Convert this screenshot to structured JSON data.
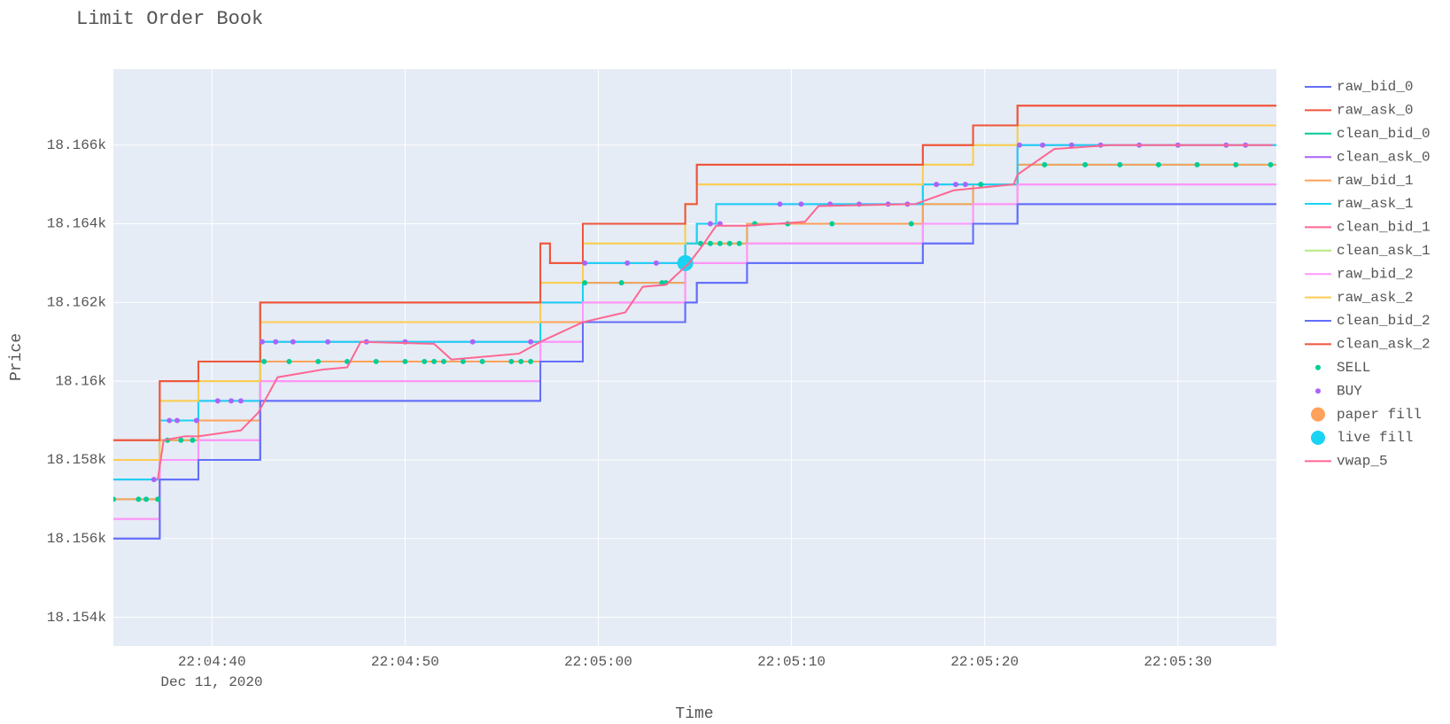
{
  "chart_data": {
    "type": "line",
    "title": "Limit Order Book",
    "x_label": "Time",
    "y_label": "Price",
    "x_date_label": "Dec 11, 2020",
    "xlim": [
      "22:04:34.9",
      "22:05:35.1"
    ],
    "xticks": [
      "22:04:40",
      "22:04:50",
      "22:05:00",
      "22:05:10",
      "22:05:20",
      "22:05:30"
    ],
    "ylim": [
      18153.27,
      18167.93
    ],
    "yticks": [
      {
        "value": 18154,
        "label": "18.154k"
      },
      {
        "value": 18156,
        "label": "18.156k"
      },
      {
        "value": 18158,
        "label": "18.158k"
      },
      {
        "value": 18160,
        "label": "18.16k"
      },
      {
        "value": 18162,
        "label": "18.162k"
      },
      {
        "value": 18164,
        "label": "18.164k"
      },
      {
        "value": 18166,
        "label": "18.166k"
      }
    ],
    "grid": true,
    "legend": "right",
    "x": [
      "22:04:34.9",
      "22:04:37.3",
      "22:04:39.3",
      "22:04:42.5",
      "22:04:57.0",
      "22:04:57.5",
      "22:04:59.2",
      "22:05:04.5",
      "22:05:05.1",
      "22:05:06.1",
      "22:05:07.7",
      "22:05:16.8",
      "22:05:19.4",
      "22:05:21.7",
      "22:05:35.1"
    ],
    "series": [
      {
        "name": "raw_bid_0",
        "color": "#636efa",
        "shape": "hv",
        "values": [
          18156,
          18157.5,
          18158,
          18159.5,
          18160.5,
          18160.5,
          18161.5,
          18162,
          18162.5,
          18162.5,
          18163,
          18163.5,
          18164,
          18164.5,
          18164.5
        ]
      },
      {
        "name": "raw_ask_0",
        "color": "#EF553B",
        "shape": "hv",
        "values": [
          18158.5,
          18160,
          18160.5,
          18162,
          18163.5,
          18163,
          18164,
          18164.5,
          18165.5,
          18165.5,
          18165.5,
          18166,
          18166.5,
          18167,
          18167
        ]
      },
      {
        "name": "clean_bid_0",
        "color": "#00cc96",
        "shape": "hv",
        "values": [
          18157,
          18158.5,
          18159,
          18160.5,
          18161.5,
          18161.5,
          18162.5,
          18163.5,
          18163.5,
          18163.5,
          18164,
          18164.5,
          18165,
          18165.5,
          18165.5
        ]
      },
      {
        "name": "clean_ask_0",
        "color": "#ab63fa",
        "shape": "hv",
        "values": [
          18157.5,
          18159,
          18159.5,
          18161,
          18162,
          18162,
          18163,
          18163.5,
          18164,
          18164.5,
          18164.5,
          18165,
          18165,
          18166,
          18166
        ]
      },
      {
        "name": "raw_bid_1",
        "color": "#FFA15A",
        "shape": "hv",
        "values": [
          18157,
          18158.5,
          18159,
          18160.5,
          18161.5,
          18161.5,
          18162.5,
          18163.5,
          18163.5,
          18163.5,
          18164,
          18164.5,
          18165,
          18165.5,
          18165.5
        ]
      },
      {
        "name": "raw_ask_1",
        "color": "#19d3f3",
        "shape": "hv",
        "values": [
          18157.5,
          18159,
          18159.5,
          18161,
          18162,
          18162,
          18163,
          18163.5,
          18164,
          18164.5,
          18164.5,
          18165,
          18165,
          18166,
          18166
        ]
      },
      {
        "name": "clean_bid_1",
        "color": "#FF6692",
        "shape": "hv",
        "values": [
          18156.5,
          18158,
          18158.5,
          18160,
          18161,
          18161,
          18162,
          18163,
          18163,
          18163,
          18163.5,
          18164,
          18164.5,
          18165,
          18165
        ]
      },
      {
        "name": "clean_ask_1",
        "color": "#B6E880",
        "shape": "hv",
        "values": [
          18158,
          18159.5,
          18160,
          18161.5,
          18162.5,
          18162.5,
          18163.5,
          18164.5,
          18165,
          18165,
          18165,
          18165.5,
          18166,
          18166.5,
          18166.5
        ]
      },
      {
        "name": "raw_bid_2",
        "color": "#FF97FF",
        "shape": "hv",
        "values": [
          18156.5,
          18158,
          18158.5,
          18160,
          18161,
          18161,
          18162,
          18163,
          18163,
          18163,
          18163.5,
          18164,
          18164.5,
          18165,
          18165
        ]
      },
      {
        "name": "raw_ask_2",
        "color": "#FECB52",
        "shape": "hv",
        "values": [
          18158,
          18159.5,
          18160,
          18161.5,
          18162.5,
          18162.5,
          18163.5,
          18164.5,
          18165,
          18165,
          18165,
          18165.5,
          18166,
          18166.5,
          18166.5
        ]
      },
      {
        "name": "clean_bid_2",
        "color": "#636efa",
        "shape": "hv",
        "values": [
          18156,
          18157.5,
          18158,
          18159.5,
          18160.5,
          18160.5,
          18161.5,
          18162,
          18162.5,
          18162.5,
          18163,
          18163.5,
          18164,
          18164.5,
          18164.5
        ]
      },
      {
        "name": "clean_ask_2",
        "color": "#EF553B",
        "shape": "hv",
        "values": [
          18158.5,
          18160,
          18160.5,
          18162,
          18163.5,
          18163,
          18164,
          18164.5,
          18165.5,
          18165.5,
          18165.5,
          18166,
          18166.5,
          18167,
          18167
        ]
      },
      {
        "name": "SELL",
        "color": "#00cc96",
        "mode": "markers",
        "size": 3,
        "x": [
          "22:04:34.9",
          "22:04:36.2",
          "22:04:36.6",
          "22:04:37.2",
          "22:04:37.7",
          "22:04:38.4",
          "22:04:39.0",
          "22:04:42.7",
          "22:04:44.0",
          "22:04:45.5",
          "22:04:47.0",
          "22:04:48.5",
          "22:04:50.0",
          "22:04:51.0",
          "22:04:51.5",
          "22:04:52.0",
          "22:04:53.0",
          "22:04:54.0",
          "22:04:55.5",
          "22:04:56.0",
          "22:04:56.5",
          "22:04:59.3",
          "22:05:01.2",
          "22:05:03.3",
          "22:05:03.5",
          "22:05:05.3",
          "22:05:05.8",
          "22:05:06.3",
          "22:05:06.8",
          "22:05:07.3",
          "22:05:08.1",
          "22:05:09.8",
          "22:05:12.1",
          "22:05:16.2",
          "22:05:19.8",
          "22:05:23.1",
          "22:05:25.2",
          "22:05:27.0",
          "22:05:29.0",
          "22:05:31.0",
          "22:05:33.0",
          "22:05:34.8"
        ],
        "values": [
          18157,
          18157,
          18157,
          18157,
          18158.5,
          18158.5,
          18158.5,
          18160.5,
          18160.5,
          18160.5,
          18160.5,
          18160.5,
          18160.5,
          18160.5,
          18160.5,
          18160.5,
          18160.5,
          18160.5,
          18160.5,
          18160.5,
          18160.5,
          18162.5,
          18162.5,
          18162.5,
          18162.5,
          18163.5,
          18163.5,
          18163.5,
          18163.5,
          18163.5,
          18164,
          18164,
          18164,
          18164,
          18165,
          18165.5,
          18165.5,
          18165.5,
          18165.5,
          18165.5,
          18165.5,
          18165.5
        ]
      },
      {
        "name": "BUY",
        "color": "#ab63fa",
        "mode": "markers",
        "size": 3,
        "x": [
          "22:04:37.0",
          "22:04:37.8",
          "22:04:38.2",
          "22:04:39.2",
          "22:04:40.3",
          "22:04:41.0",
          "22:04:41.5",
          "22:04:42.6",
          "22:04:43.3",
          "22:04:44.2",
          "22:04:46.0",
          "22:04:48.0",
          "22:04:50.0",
          "22:04:53.5",
          "22:04:56.5",
          "22:04:59.3",
          "22:05:01.5",
          "22:05:03.0",
          "22:05:05.8",
          "22:05:06.3",
          "22:05:09.4",
          "22:05:10.5",
          "22:05:12.0",
          "22:05:13.5",
          "22:05:15.0",
          "22:05:16.0",
          "22:05:17.5",
          "22:05:18.5",
          "22:05:19.0",
          "22:05:21.8",
          "22:05:23.0",
          "22:05:24.5",
          "22:05:26.0",
          "22:05:28.0",
          "22:05:30.0",
          "22:05:32.5",
          "22:05:33.5"
        ],
        "values": [
          18157.5,
          18159,
          18159,
          18159,
          18159.5,
          18159.5,
          18159.5,
          18161,
          18161,
          18161,
          18161,
          18161,
          18161,
          18161,
          18161,
          18163,
          18163,
          18163,
          18164,
          18164,
          18164.5,
          18164.5,
          18164.5,
          18164.5,
          18164.5,
          18164.5,
          18165,
          18165,
          18165,
          18166,
          18166,
          18166,
          18166,
          18166,
          18166,
          18166,
          18166
        ]
      },
      {
        "name": "paper fill",
        "color": "#FFA15A",
        "mode": "markers",
        "size": 9,
        "x": [],
        "values": []
      },
      {
        "name": "live fill",
        "color": "#19d3f3",
        "mode": "markers",
        "size": 9,
        "x": [
          "22:05:04.5"
        ],
        "values": [
          18163
        ]
      },
      {
        "name": "vwap_5",
        "color": "#FF6692",
        "mode": "lines",
        "x": [
          "22:04:37.2",
          "22:04:37.5",
          "22:04:38.6",
          "22:04:39.3",
          "22:04:41.5",
          "22:04:42.4",
          "22:04:43.4",
          "22:04:45.8",
          "22:04:47.0",
          "22:04:47.7",
          "22:04:51.5",
          "22:04:52.4",
          "22:04:55.9",
          "22:04:57.0",
          "22:04:59.2",
          "22:05:01.4",
          "22:05:02.3",
          "22:05:03.5",
          "22:05:04.7",
          "22:05:05.4",
          "22:05:06.1",
          "22:05:07.7",
          "22:05:10.7",
          "22:05:11.4",
          "22:05:16.4",
          "22:05:18.4",
          "22:05:21.5",
          "22:05:21.7",
          "22:05:23.6",
          "22:05:26.5",
          "22:05:34.9"
        ],
        "values": [
          18157.5,
          18158.5,
          18158.6,
          18158.6,
          18158.75,
          18159.2,
          18160.1,
          18160.3,
          18160.35,
          18161,
          18160.95,
          18160.55,
          18160.7,
          18161,
          18161.5,
          18161.75,
          18162.4,
          18162.45,
          18163,
          18163.45,
          18163.95,
          18163.95,
          18164.05,
          18164.45,
          18164.5,
          18164.85,
          18165,
          18165.25,
          18165.9,
          18166,
          18166
        ]
      }
    ]
  }
}
